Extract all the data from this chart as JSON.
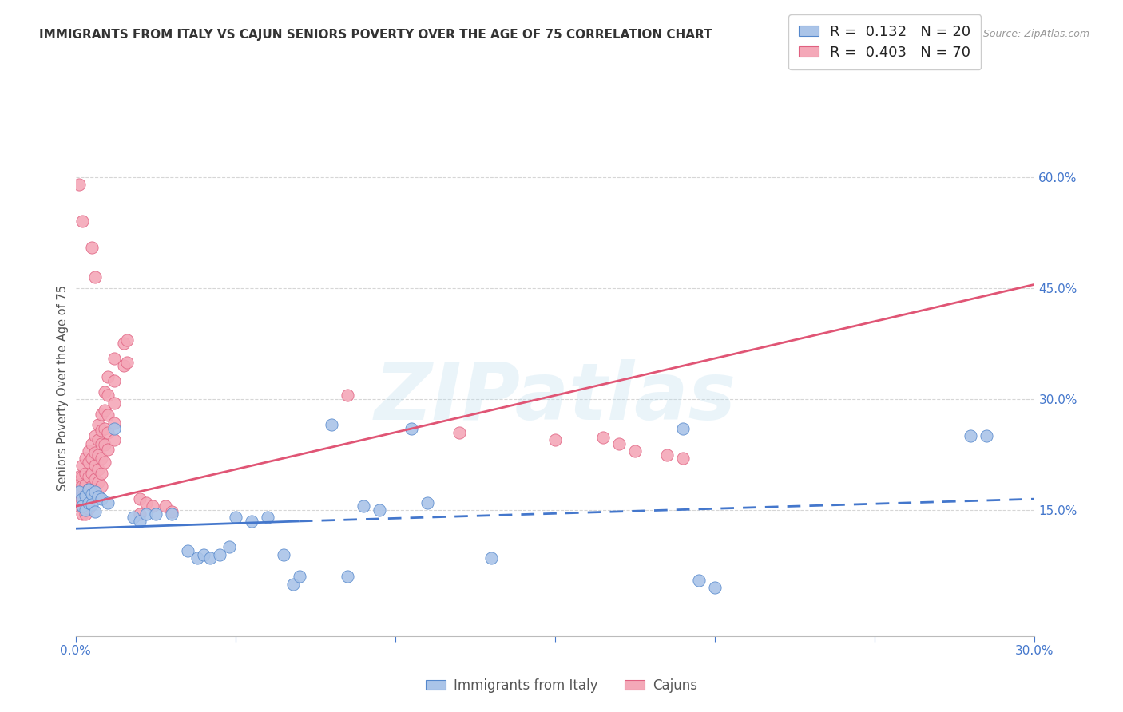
{
  "title": "IMMIGRANTS FROM ITALY VS CAJUN SENIORS POVERTY OVER THE AGE OF 75 CORRELATION CHART",
  "source": "Source: ZipAtlas.com",
  "ylabel": "Seniors Poverty Over the Age of 75",
  "xlim": [
    0.0,
    0.3
  ],
  "ylim": [
    -0.02,
    0.65
  ],
  "xticks": [
    0.0,
    0.05,
    0.1,
    0.15,
    0.2,
    0.25,
    0.3
  ],
  "ytick_right_vals": [
    0.15,
    0.3,
    0.45,
    0.6
  ],
  "ytick_right_labels": [
    "15.0%",
    "30.0%",
    "45.0%",
    "60.0%"
  ],
  "grid_color": "#cccccc",
  "background_color": "#ffffff",
  "watermark": "ZIPatlas",
  "blue_fill": "#aac4e8",
  "pink_fill": "#f4a8b8",
  "blue_edge": "#5588cc",
  "pink_edge": "#e06080",
  "blue_line": "#4477cc",
  "pink_line": "#e05575",
  "title_color": "#333333",
  "source_color": "#999999",
  "ylabel_color": "#555555",
  "tick_color": "#4477cc",
  "italy_points": [
    [
      0.001,
      0.175
    ],
    [
      0.002,
      0.165
    ],
    [
      0.002,
      0.155
    ],
    [
      0.003,
      0.17
    ],
    [
      0.003,
      0.15
    ],
    [
      0.004,
      0.178
    ],
    [
      0.004,
      0.16
    ],
    [
      0.005,
      0.172
    ],
    [
      0.005,
      0.158
    ],
    [
      0.006,
      0.175
    ],
    [
      0.006,
      0.148
    ],
    [
      0.007,
      0.168
    ],
    [
      0.008,
      0.165
    ],
    [
      0.01,
      0.16
    ],
    [
      0.012,
      0.26
    ],
    [
      0.018,
      0.14
    ],
    [
      0.02,
      0.135
    ],
    [
      0.022,
      0.145
    ],
    [
      0.025,
      0.145
    ],
    [
      0.03,
      0.145
    ],
    [
      0.035,
      0.095
    ],
    [
      0.038,
      0.085
    ],
    [
      0.04,
      0.09
    ],
    [
      0.042,
      0.085
    ],
    [
      0.045,
      0.09
    ],
    [
      0.048,
      0.1
    ],
    [
      0.05,
      0.14
    ],
    [
      0.055,
      0.135
    ],
    [
      0.06,
      0.14
    ],
    [
      0.065,
      0.09
    ],
    [
      0.068,
      0.05
    ],
    [
      0.07,
      0.06
    ],
    [
      0.08,
      0.265
    ],
    [
      0.085,
      0.06
    ],
    [
      0.09,
      0.155
    ],
    [
      0.095,
      0.15
    ],
    [
      0.105,
      0.26
    ],
    [
      0.11,
      0.16
    ],
    [
      0.13,
      0.085
    ],
    [
      0.19,
      0.26
    ],
    [
      0.195,
      0.055
    ],
    [
      0.2,
      0.045
    ],
    [
      0.28,
      0.25
    ],
    [
      0.285,
      0.25
    ]
  ],
  "cajun_points": [
    [
      0.001,
      0.195
    ],
    [
      0.001,
      0.185
    ],
    [
      0.001,
      0.178
    ],
    [
      0.001,
      0.165
    ],
    [
      0.001,
      0.155
    ],
    [
      0.002,
      0.21
    ],
    [
      0.002,
      0.195
    ],
    [
      0.002,
      0.182
    ],
    [
      0.002,
      0.168
    ],
    [
      0.002,
      0.155
    ],
    [
      0.002,
      0.145
    ],
    [
      0.003,
      0.22
    ],
    [
      0.003,
      0.2
    ],
    [
      0.003,
      0.185
    ],
    [
      0.003,
      0.17
    ],
    [
      0.003,
      0.155
    ],
    [
      0.003,
      0.145
    ],
    [
      0.004,
      0.23
    ],
    [
      0.004,
      0.215
    ],
    [
      0.004,
      0.195
    ],
    [
      0.004,
      0.178
    ],
    [
      0.004,
      0.165
    ],
    [
      0.004,
      0.152
    ],
    [
      0.005,
      0.24
    ],
    [
      0.005,
      0.22
    ],
    [
      0.005,
      0.2
    ],
    [
      0.005,
      0.182
    ],
    [
      0.005,
      0.168
    ],
    [
      0.006,
      0.25
    ],
    [
      0.006,
      0.228
    ],
    [
      0.006,
      0.21
    ],
    [
      0.006,
      0.192
    ],
    [
      0.006,
      0.178
    ],
    [
      0.007,
      0.265
    ],
    [
      0.007,
      0.245
    ],
    [
      0.007,
      0.225
    ],
    [
      0.007,
      0.205
    ],
    [
      0.007,
      0.188
    ],
    [
      0.007,
      0.17
    ],
    [
      0.008,
      0.28
    ],
    [
      0.008,
      0.258
    ],
    [
      0.008,
      0.24
    ],
    [
      0.008,
      0.22
    ],
    [
      0.008,
      0.2
    ],
    [
      0.008,
      0.182
    ],
    [
      0.009,
      0.31
    ],
    [
      0.009,
      0.285
    ],
    [
      0.009,
      0.26
    ],
    [
      0.009,
      0.238
    ],
    [
      0.009,
      0.215
    ],
    [
      0.01,
      0.33
    ],
    [
      0.01,
      0.305
    ],
    [
      0.01,
      0.278
    ],
    [
      0.01,
      0.255
    ],
    [
      0.01,
      0.232
    ],
    [
      0.012,
      0.355
    ],
    [
      0.012,
      0.325
    ],
    [
      0.012,
      0.295
    ],
    [
      0.012,
      0.268
    ],
    [
      0.012,
      0.245
    ],
    [
      0.015,
      0.375
    ],
    [
      0.015,
      0.345
    ],
    [
      0.016,
      0.38
    ],
    [
      0.016,
      0.35
    ],
    [
      0.02,
      0.165
    ],
    [
      0.02,
      0.145
    ],
    [
      0.022,
      0.16
    ],
    [
      0.024,
      0.155
    ],
    [
      0.028,
      0.155
    ],
    [
      0.03,
      0.148
    ],
    [
      0.001,
      0.59
    ],
    [
      0.002,
      0.54
    ],
    [
      0.085,
      0.305
    ],
    [
      0.12,
      0.255
    ],
    [
      0.15,
      0.245
    ],
    [
      0.165,
      0.248
    ],
    [
      0.17,
      0.24
    ],
    [
      0.175,
      0.23
    ],
    [
      0.185,
      0.225
    ],
    [
      0.19,
      0.22
    ],
    [
      0.005,
      0.505
    ],
    [
      0.006,
      0.465
    ]
  ],
  "italy_trend_solid": [
    0.0,
    0.125,
    0.07,
    0.135
  ],
  "italy_trend_dash": [
    0.07,
    0.135,
    0.3,
    0.165
  ],
  "cajun_trend": [
    0.0,
    0.155,
    0.3,
    0.455
  ]
}
